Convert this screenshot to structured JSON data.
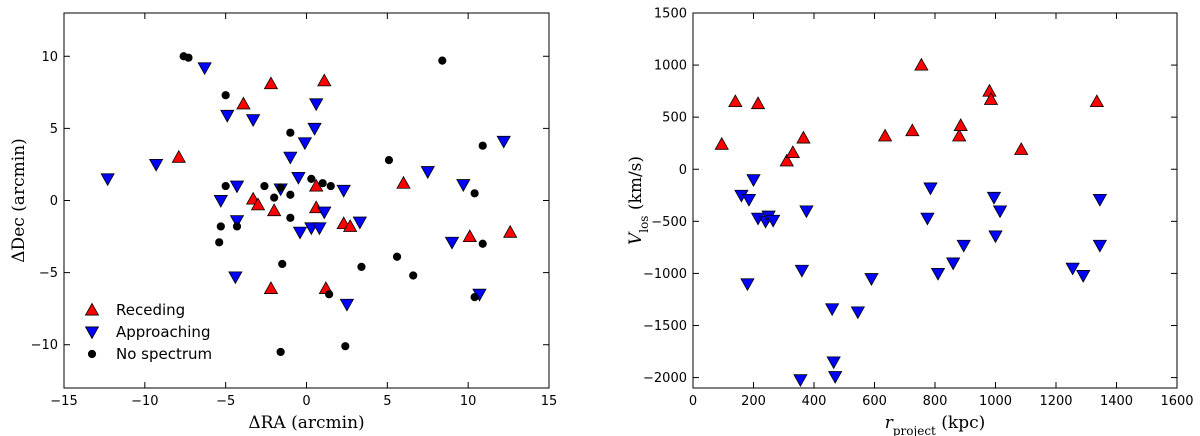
{
  "chart_data": [
    {
      "type": "scatter",
      "xlabel": "ΔRA (arcmin)",
      "ylabel": "ΔDec (arcmin)",
      "xlim": [
        -15,
        15
      ],
      "ylim": [
        -13,
        13
      ],
      "xticks": [
        -15,
        -10,
        -5,
        0,
        5,
        10,
        15
      ],
      "yticks": [
        -10,
        -5,
        0,
        5,
        10
      ],
      "legend": {
        "placement": "bottom-left",
        "entries": [
          "Receding",
          "Approaching",
          "No spectrum"
        ]
      },
      "series": [
        {
          "name": "Receding",
          "marker": "triangle-up",
          "color": "#ff0000",
          "points": [
            [
              -2.2,
              8.1
            ],
            [
              1.1,
              8.3
            ],
            [
              -3.9,
              6.7
            ],
            [
              -7.9,
              3.0
            ],
            [
              -3.3,
              0.1
            ],
            [
              -3.0,
              -0.3
            ],
            [
              -2.0,
              -0.7
            ],
            [
              0.6,
              1.0
            ],
            [
              0.6,
              -0.5
            ],
            [
              2.3,
              -1.6
            ],
            [
              2.7,
              -1.8
            ],
            [
              6.0,
              1.2
            ],
            [
              12.6,
              -2.2
            ],
            [
              10.1,
              -2.5
            ],
            [
              -2.2,
              -6.1
            ],
            [
              1.2,
              -6.1
            ]
          ]
        },
        {
          "name": "Approaching",
          "marker": "triangle-down",
          "color": "#0000ff",
          "points": [
            [
              -6.3,
              9.2
            ],
            [
              0.6,
              6.7
            ],
            [
              -4.9,
              5.9
            ],
            [
              -3.3,
              5.6
            ],
            [
              0.5,
              5.0
            ],
            [
              -0.1,
              4.0
            ],
            [
              12.2,
              4.1
            ],
            [
              -9.3,
              2.5
            ],
            [
              -12.3,
              1.5
            ],
            [
              -1.0,
              3.0
            ],
            [
              7.5,
              2.0
            ],
            [
              -0.5,
              1.6
            ],
            [
              -4.3,
              1.0
            ],
            [
              -1.6,
              0.8
            ],
            [
              2.3,
              0.7
            ],
            [
              9.7,
              1.1
            ],
            [
              -5.3,
              0.0
            ],
            [
              -4.3,
              -1.4
            ],
            [
              3.3,
              -1.5
            ],
            [
              1.1,
              -0.8
            ],
            [
              0.3,
              -1.9
            ],
            [
              0.8,
              -1.9
            ],
            [
              -0.4,
              -2.2
            ],
            [
              9.0,
              -2.9
            ],
            [
              -4.4,
              -5.3
            ],
            [
              2.5,
              -7.2
            ],
            [
              10.7,
              -6.5
            ]
          ]
        },
        {
          "name": "No spectrum",
          "marker": "circle",
          "color": "#000000",
          "points": [
            [
              -7.6,
              10.0
            ],
            [
              -7.3,
              9.9
            ],
            [
              8.4,
              9.7
            ],
            [
              -5.0,
              7.3
            ],
            [
              -1.0,
              4.7
            ],
            [
              5.1,
              2.8
            ],
            [
              10.9,
              3.8
            ],
            [
              0.3,
              1.5
            ],
            [
              1.0,
              1.2
            ],
            [
              1.5,
              1.0
            ],
            [
              -5.0,
              1.0
            ],
            [
              -2.6,
              1.0
            ],
            [
              -1.6,
              0.9
            ],
            [
              -1.0,
              0.4
            ],
            [
              -2.0,
              0.2
            ],
            [
              10.4,
              0.5
            ],
            [
              -5.3,
              -1.8
            ],
            [
              -4.3,
              -1.8
            ],
            [
              -1.0,
              -1.2
            ],
            [
              -5.4,
              -2.9
            ],
            [
              10.9,
              -3.0
            ],
            [
              5.6,
              -3.9
            ],
            [
              3.4,
              -4.6
            ],
            [
              -1.5,
              -4.4
            ],
            [
              6.6,
              -5.2
            ],
            [
              1.4,
              -6.5
            ],
            [
              10.4,
              -6.7
            ],
            [
              -1.6,
              -10.5
            ],
            [
              2.4,
              -10.1
            ]
          ]
        }
      ]
    },
    {
      "type": "scatter",
      "xlabel": "r_project (kpc)",
      "ylabel": "V_los (km/s)",
      "xlim": [
        0,
        1600
      ],
      "ylim": [
        -2100,
        1500
      ],
      "xticks": [
        0,
        200,
        400,
        600,
        800,
        1000,
        1200,
        1400,
        1600
      ],
      "yticks": [
        -2000,
        -1500,
        -1000,
        -500,
        0,
        500,
        1000,
        1500
      ],
      "series": [
        {
          "name": "Receding",
          "marker": "triangle-up",
          "color": "#ff0000",
          "points": [
            [
              95,
              240
            ],
            [
              140,
              650
            ],
            [
              215,
              630
            ],
            [
              310,
              80
            ],
            [
              330,
              160
            ],
            [
              365,
              300
            ],
            [
              635,
              320
            ],
            [
              725,
              370
            ],
            [
              755,
              1000
            ],
            [
              880,
              320
            ],
            [
              885,
              420
            ],
            [
              980,
              750
            ],
            [
              985,
              670
            ],
            [
              1085,
              190
            ],
            [
              1335,
              650
            ]
          ]
        },
        {
          "name": "Approaching",
          "marker": "triangle-down",
          "color": "#0000ff",
          "points": [
            [
              160,
              -250
            ],
            [
              180,
              -1100
            ],
            [
              185,
              -290
            ],
            [
              200,
              -100
            ],
            [
              215,
              -470
            ],
            [
              240,
              -500
            ],
            [
              250,
              -450
            ],
            [
              265,
              -490
            ],
            [
              355,
              -2020
            ],
            [
              360,
              -970
            ],
            [
              375,
              -400
            ],
            [
              460,
              -1340
            ],
            [
              465,
              -1850
            ],
            [
              470,
              -1990
            ],
            [
              545,
              -1370
            ],
            [
              590,
              -1050
            ],
            [
              775,
              -470
            ],
            [
              785,
              -180
            ],
            [
              810,
              -1000
            ],
            [
              860,
              -900
            ],
            [
              895,
              -730
            ],
            [
              995,
              -270
            ],
            [
              1000,
              -640
            ],
            [
              1015,
              -400
            ],
            [
              1255,
              -950
            ],
            [
              1290,
              -1020
            ],
            [
              1345,
              -290
            ],
            [
              1345,
              -730
            ]
          ]
        }
      ]
    }
  ]
}
